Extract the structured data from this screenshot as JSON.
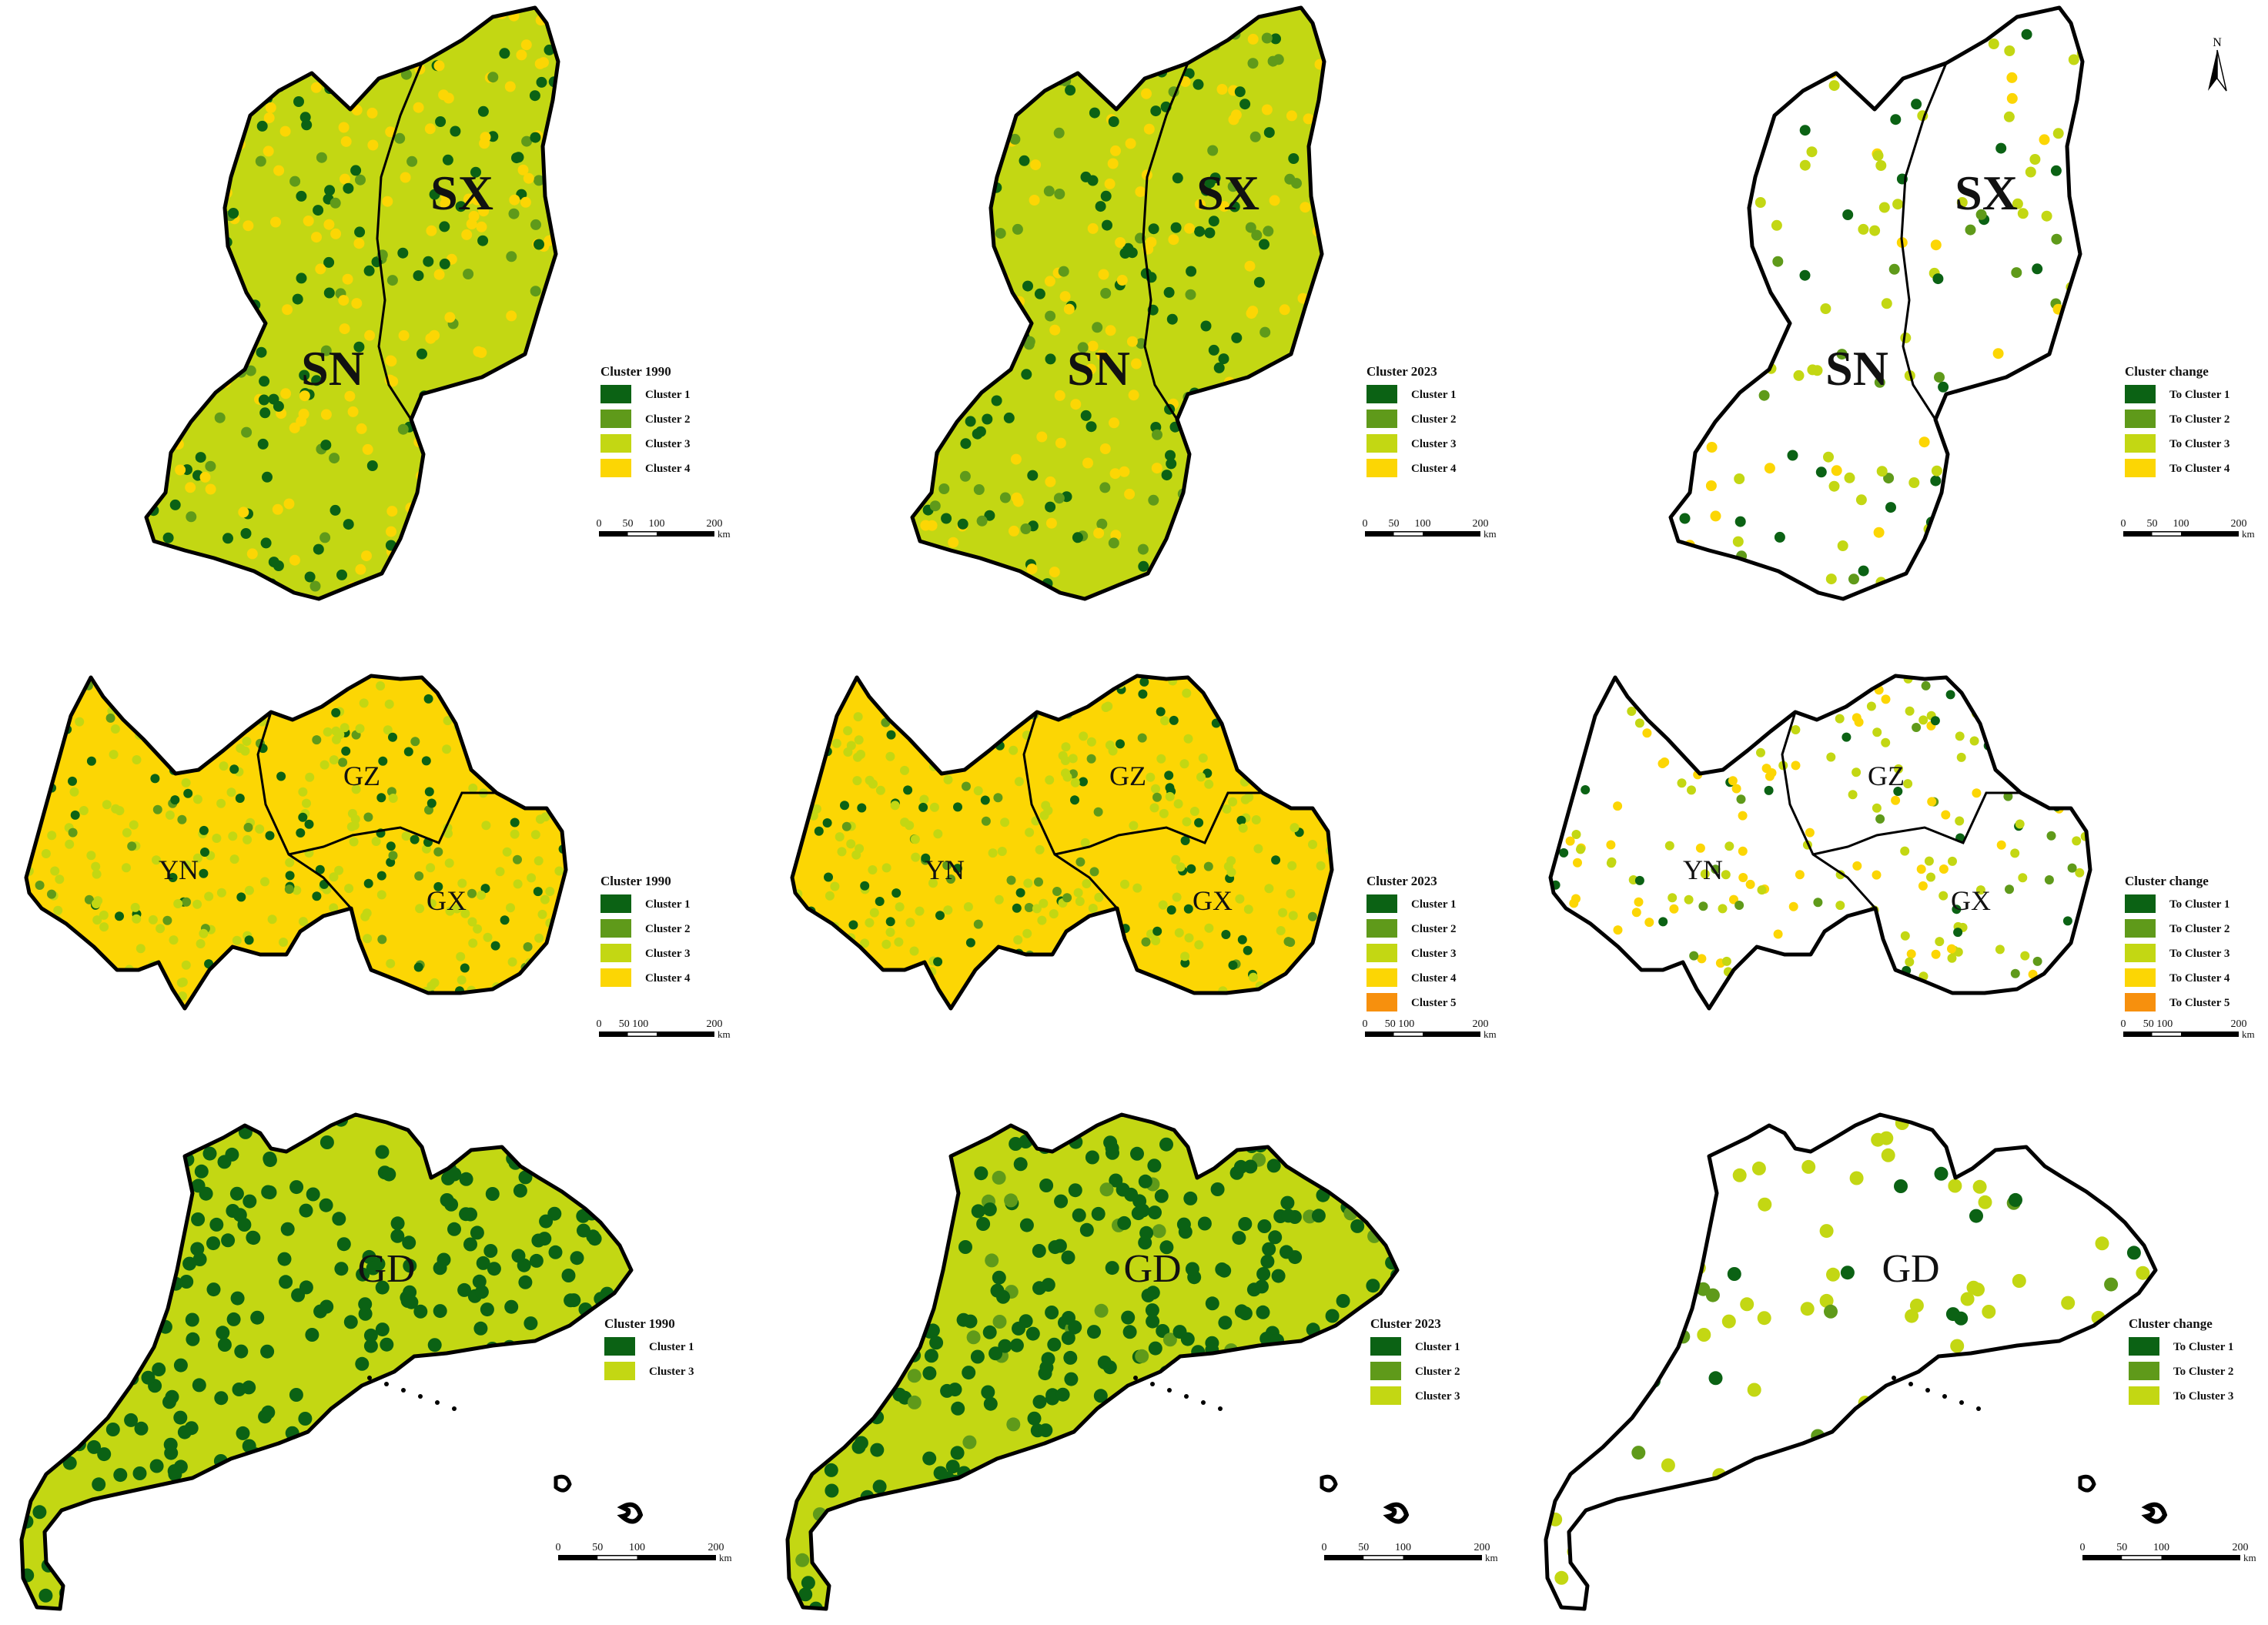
{
  "colors": {
    "cluster_1": "#0b6214",
    "cluster_2": "#5f9a1a",
    "cluster_3": "#c3d713",
    "cluster_4": "#fcd604",
    "cluster_5": "#f7900d",
    "boundary": "#000000",
    "background": "#ffffff"
  },
  "north_arrow": {
    "label": "N",
    "icon": "north-arrow-icon"
  },
  "scale_bars": {
    "large": {
      "ticks": [
        "0",
        "50",
        "100",
        "200"
      ],
      "unit": "km"
    },
    "tight": {
      "ticks": [
        "0",
        "50 100",
        "200"
      ],
      "unit": "km"
    }
  },
  "rows": [
    {
      "id": "sx-sn",
      "region_labels": [
        "SX",
        "SN"
      ],
      "panels": [
        {
          "id": "1990",
          "legend_title": "Cluster  1990",
          "legend_items": [
            {
              "label": "Cluster 1",
              "color_key": "cluster_1"
            },
            {
              "label": "Cluster 2",
              "color_key": "cluster_2"
            },
            {
              "label": "Cluster 3",
              "color_key": "cluster_3"
            },
            {
              "label": "Cluster 4",
              "color_key": "cluster_4"
            }
          ],
          "scale": "large"
        },
        {
          "id": "2023",
          "legend_title": "Cluster  2023",
          "legend_items": [
            {
              "label": "Cluster 1",
              "color_key": "cluster_1"
            },
            {
              "label": "Cluster 2",
              "color_key": "cluster_2"
            },
            {
              "label": "Cluster 3",
              "color_key": "cluster_3"
            },
            {
              "label": "Cluster 4",
              "color_key": "cluster_4"
            }
          ],
          "scale": "large"
        },
        {
          "id": "change",
          "legend_title": "Cluster change",
          "legend_items": [
            {
              "label": "To Cluster 1",
              "color_key": "cluster_1"
            },
            {
              "label": "To Cluster 2",
              "color_key": "cluster_2"
            },
            {
              "label": "To Cluster 3",
              "color_key": "cluster_3"
            },
            {
              "label": "To Cluster 4",
              "color_key": "cluster_4"
            }
          ],
          "scale": "large"
        }
      ]
    },
    {
      "id": "yn-gz-gx",
      "region_labels": [
        "GZ",
        "YN",
        "GX"
      ],
      "panels": [
        {
          "id": "1990",
          "legend_title": "Cluster  1990",
          "legend_items": [
            {
              "label": "Cluster 1",
              "color_key": "cluster_1"
            },
            {
              "label": "Cluster 2",
              "color_key": "cluster_2"
            },
            {
              "label": "Cluster 3",
              "color_key": "cluster_3"
            },
            {
              "label": "Cluster 4",
              "color_key": "cluster_4"
            }
          ],
          "scale": "tight"
        },
        {
          "id": "2023",
          "legend_title": "Cluster  2023",
          "legend_items": [
            {
              "label": "Cluster 1",
              "color_key": "cluster_1"
            },
            {
              "label": "Cluster 2",
              "color_key": "cluster_2"
            },
            {
              "label": "Cluster 3",
              "color_key": "cluster_3"
            },
            {
              "label": "Cluster 4",
              "color_key": "cluster_4"
            },
            {
              "label": "Cluster 5",
              "color_key": "cluster_5"
            }
          ],
          "scale": "tight"
        },
        {
          "id": "change",
          "legend_title": "Cluster change",
          "legend_items": [
            {
              "label": "To Cluster 1",
              "color_key": "cluster_1"
            },
            {
              "label": "To Cluster 2",
              "color_key": "cluster_2"
            },
            {
              "label": "To Cluster 3",
              "color_key": "cluster_3"
            },
            {
              "label": "To Cluster 4",
              "color_key": "cluster_4"
            },
            {
              "label": "To Cluster 5",
              "color_key": "cluster_5"
            }
          ],
          "scale": "tight"
        }
      ]
    },
    {
      "id": "gd",
      "region_labels": [
        "GD"
      ],
      "panels": [
        {
          "id": "1990",
          "legend_title": "Cluster  1990",
          "legend_items": [
            {
              "label": "Cluster 1",
              "color_key": "cluster_1"
            },
            {
              "label": "Cluster 3",
              "color_key": "cluster_3"
            }
          ],
          "scale": "large"
        },
        {
          "id": "2023",
          "legend_title": "Cluster  2023",
          "legend_items": [
            {
              "label": "Cluster 1",
              "color_key": "cluster_1"
            },
            {
              "label": "Cluster 2",
              "color_key": "cluster_2"
            },
            {
              "label": "Cluster 3",
              "color_key": "cluster_3"
            }
          ],
          "scale": "large"
        },
        {
          "id": "change",
          "legend_title": "Cluster change",
          "legend_items": [
            {
              "label": "To Cluster 1",
              "color_key": "cluster_1"
            },
            {
              "label": "To Cluster 2",
              "color_key": "cluster_2"
            },
            {
              "label": "To Cluster 3",
              "color_key": "cluster_3"
            }
          ],
          "scale": "large"
        }
      ]
    }
  ]
}
